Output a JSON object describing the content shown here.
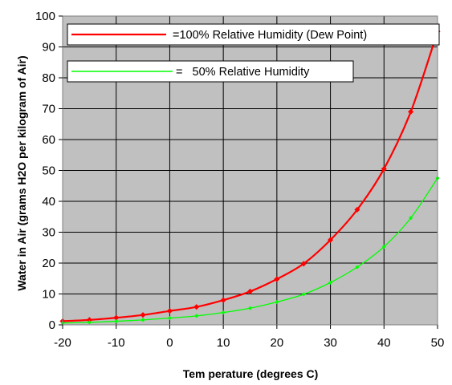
{
  "chart_data": {
    "type": "line",
    "title": "",
    "xlabel": "Tem perature (degrees C)",
    "ylabel": "Water in Air (grams H2O per kilogram of Air)",
    "xlim": [
      -20,
      50
    ],
    "ylim": [
      0,
      100
    ],
    "x_ticks": [
      "-20",
      "-10",
      "0",
      "10",
      "20",
      "30",
      "40",
      "50"
    ],
    "y_ticks": [
      "0",
      "10",
      "20",
      "30",
      "40",
      "50",
      "60",
      "70",
      "80",
      "90",
      "100"
    ],
    "grid": true,
    "plot_background": "#c0c0c0",
    "legend_position": "top-left inside plot",
    "x": [
      -20,
      -15,
      -10,
      -5,
      0,
      5,
      10,
      15,
      20,
      25,
      30,
      35,
      40,
      45,
      50
    ],
    "series": [
      {
        "name": "=100% Relative Humidity (Dew Point)",
        "color": "#ff0000",
        "values": [
          1.2,
          1.6,
          2.3,
          3.2,
          4.5,
          5.8,
          8.0,
          10.8,
          14.8,
          19.8,
          27.5,
          37.3,
          50.5,
          69.0,
          95.0
        ]
      },
      {
        "name": "=   50% Relative Humidity",
        "color": "#00ff00",
        "values": [
          0.6,
          0.8,
          1.15,
          1.6,
          2.2,
          2.9,
          4.0,
          5.4,
          7.4,
          9.9,
          13.7,
          18.7,
          25.3,
          34.6,
          47.5
        ]
      }
    ]
  }
}
